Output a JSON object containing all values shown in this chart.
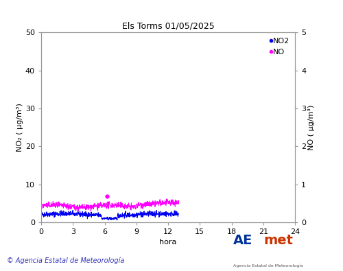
{
  "title": "Els Torms 01/05/2025",
  "xlabel": "hora",
  "ylabel_left": "NO₂ ( µg/m³)",
  "ylabel_right": "NO ( µg/m³)",
  "xlim": [
    0,
    24
  ],
  "xticks": [
    0,
    3,
    6,
    9,
    12,
    15,
    18,
    21,
    24
  ],
  "ylim_left": [
    0,
    50
  ],
  "yticks_left": [
    0,
    10,
    20,
    30,
    40,
    50
  ],
  "ylim_right": [
    0,
    5
  ],
  "yticks_right": [
    0,
    1,
    2,
    3,
    4,
    5
  ],
  "no2_color": "#0000ee",
  "no_color": "#ff00ff",
  "bg_color": "#ffffff",
  "spine_color": "#999999",
  "title_fontsize": 9,
  "label_fontsize": 8,
  "tick_fontsize": 8,
  "legend_no2": "NO2",
  "legend_no": "NO",
  "footer_text": "© Agencia Estatal de Meteorología",
  "footer_color": "#3333bb",
  "seed": 42,
  "no2_base": 2.0,
  "no2_noise": 0.35,
  "no_base": 0.42,
  "no_noise": 0.04,
  "no_spike_x": 6.25,
  "no_spike_y": 0.68,
  "data_end_x": 13.0
}
